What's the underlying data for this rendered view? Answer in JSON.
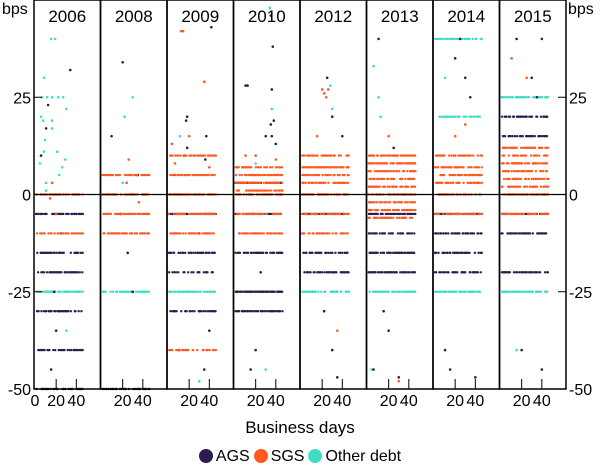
{
  "chart_data": {
    "type": "scatter",
    "ylabel_left": "bps",
    "ylabel_right": "bps",
    "xlabel": "Business days",
    "ylim": [
      -50,
      50
    ],
    "xlim": [
      0,
      62
    ],
    "yticks": [
      "25",
      "0",
      "-25",
      "-50"
    ],
    "ytick_values": [
      25,
      0,
      -25,
      -50
    ],
    "xticks_first": [
      "0",
      "20",
      "40"
    ],
    "xticks": [
      "20",
      "40"
    ],
    "xtick_values": [
      20,
      40
    ],
    "legend": [
      {
        "name": "AGS",
        "color": "#2b1d4f"
      },
      {
        "name": "SGS",
        "color": "#ff5a1e"
      },
      {
        "name": "Other debt",
        "color": "#40dcc4"
      }
    ],
    "legend_position": "bottom",
    "panels": [
      {
        "title": "2006",
        "AGS": {
          "levels": [
            -5,
            -15,
            -20,
            -30,
            -40,
            -50
          ],
          "points": [
            [
              12,
              23
            ],
            [
              10,
              17
            ],
            [
              34,
              32
            ],
            [
              5,
              10
            ],
            [
              20,
              -35
            ],
            [
              15,
              -45
            ],
            [
              25,
              -10
            ],
            [
              18,
              -25
            ]
          ]
        },
        "SGS": {
          "levels": [
            0,
            -10
          ],
          "points": [
            [
              16,
              3
            ],
            [
              14,
              -1
            ],
            [
              20,
              -5
            ],
            [
              25,
              -10
            ]
          ]
        },
        "Other debt": {
          "levels": [
            -25
          ],
          "points": [
            [
              15,
              40
            ],
            [
              19,
              40
            ],
            [
              8,
              30
            ],
            [
              6,
              25
            ],
            [
              11,
              25
            ],
            [
              16,
              25
            ],
            [
              22,
              25
            ],
            [
              27,
              25
            ],
            [
              30,
              22
            ],
            [
              5,
              20
            ],
            [
              7,
              19
            ],
            [
              16,
              19
            ],
            [
              16,
              17
            ],
            [
              9,
              14
            ],
            [
              8,
              11
            ],
            [
              21,
              11
            ],
            [
              4,
              8
            ],
            [
              29,
              9
            ],
            [
              23,
              5
            ],
            [
              26,
              7
            ],
            [
              10,
              3
            ],
            [
              10,
              1
            ],
            [
              30,
              -35
            ]
          ]
        }
      },
      {
        "title": "2008",
        "AGS": {
          "levels": [
            -50
          ],
          "points": [
            [
              20,
              34
            ],
            [
              9,
              15
            ],
            [
              35,
              5
            ],
            [
              18,
              -5
            ],
            [
              25,
              -15
            ],
            [
              30,
              -25
            ]
          ]
        },
        "SGS": {
          "levels": [
            0,
            5,
            -5,
            -10
          ],
          "points": [
            [
              26,
              9
            ],
            [
              24,
              3
            ],
            [
              36,
              -2
            ]
          ]
        },
        "Other debt": {
          "levels": [
            -25
          ],
          "points": [
            [
              30,
              25
            ],
            [
              22,
              20
            ],
            [
              20,
              3
            ],
            [
              28,
              0
            ]
          ]
        }
      },
      {
        "title": "2009",
        "AGS": {
          "levels": [
            -5,
            -15,
            -20,
            -30
          ],
          "points": [
            [
              42,
              43
            ],
            [
              18,
              20
            ],
            [
              17,
              19
            ],
            [
              37,
              15
            ],
            [
              18,
              12
            ],
            [
              36,
              9
            ],
            [
              15,
              10
            ],
            [
              30,
              -10
            ],
            [
              40,
              -35
            ],
            [
              35,
              -45
            ],
            [
              10,
              -40
            ]
          ]
        },
        "SGS": {
          "levels": [
            10,
            5,
            0,
            -5,
            -10,
            -40
          ],
          "points": [
            [
              12,
              42
            ],
            [
              14,
              42
            ],
            [
              35,
              29
            ],
            [
              3,
              13
            ],
            [
              20,
              15
            ],
            [
              6,
              8
            ],
            [
              40,
              7
            ]
          ]
        },
        "Other debt": {
          "levels": [
            -25
          ],
          "points": [
            [
              11,
              15
            ],
            [
              30,
              -48
            ]
          ]
        }
      },
      {
        "title": "2010",
        "AGS": {
          "levels": [
            3,
            -5,
            -15,
            -25,
            -30
          ],
          "points": [
            [
              35,
              46
            ],
            [
              10,
              28
            ],
            [
              12,
              28
            ],
            [
              37,
              38
            ],
            [
              36,
              27
            ],
            [
              38,
              19
            ],
            [
              35,
              18
            ],
            [
              36,
              15
            ],
            [
              40,
              13
            ],
            [
              30,
              15
            ],
            [
              20,
              -40
            ],
            [
              15,
              -45
            ],
            [
              25,
              -20
            ]
          ]
        },
        "SGS": {
          "levels": [
            7,
            5,
            3,
            1,
            0,
            -5,
            -10
          ],
          "points": [
            [
              10,
              10
            ],
            [
              20,
              10
            ],
            [
              40,
              9
            ]
          ]
        },
        "Other debt": {
          "levels": [
            -25
          ],
          "points": [
            [
              34,
              48
            ],
            [
              36,
              22
            ],
            [
              20,
              8
            ],
            [
              30,
              -45
            ]
          ]
        }
      },
      {
        "title": "2012",
        "AGS": {
          "levels": [
            -5,
            -15,
            -20
          ],
          "points": [
            [
              25,
              30
            ],
            [
              30,
              20
            ],
            [
              40,
              15
            ],
            [
              22,
              -30
            ],
            [
              30,
              -40
            ],
            [
              35,
              -47
            ]
          ]
        },
        "SGS": {
          "levels": [
            10,
            7,
            5,
            3,
            0,
            -5,
            -10
          ],
          "points": [
            [
              20,
              27
            ],
            [
              22,
              26
            ],
            [
              24,
              25
            ],
            [
              26,
              27
            ],
            [
              15,
              15
            ],
            [
              35,
              -35
            ]
          ]
        },
        "Other debt": {
          "levels": [
            -25
          ],
          "points": [
            [
              28,
              28
            ],
            [
              30,
              22
            ],
            [
              20,
              -50
            ]
          ]
        }
      },
      {
        "title": "2013",
        "AGS": {
          "levels": [
            -5,
            -10,
            -15,
            -20
          ],
          "points": [
            [
              10,
              40
            ],
            [
              15,
              -30
            ],
            [
              20,
              -35
            ],
            [
              5,
              -45
            ],
            [
              30,
              -47
            ],
            [
              25,
              12
            ]
          ]
        },
        "SGS": {
          "levels": [
            10,
            8,
            6,
            4,
            2,
            0,
            -2,
            -4,
            -6
          ],
          "points": [
            [
              30,
              -48
            ],
            [
              20,
              15
            ]
          ]
        },
        "Other debt": {
          "levels": [
            -25
          ],
          "points": [
            [
              5,
              33
            ],
            [
              10,
              25
            ],
            [
              12,
              20
            ],
            [
              3,
              -45
            ]
          ]
        }
      },
      {
        "title": "2014",
        "AGS": {
          "levels": [
            -5,
            -10,
            -15,
            -20
          ],
          "points": [
            [
              20,
              35
            ],
            [
              25,
              40
            ],
            [
              30,
              30
            ],
            [
              35,
              25
            ],
            [
              10,
              -40
            ],
            [
              15,
              -45
            ],
            [
              40,
              -47
            ]
          ]
        },
        "SGS": {
          "levels": [
            10,
            7,
            5,
            3,
            0,
            -5
          ],
          "points": [
            [
              20,
              15
            ],
            [
              30,
              18
            ]
          ]
        },
        "Other debt": {
          "levels": [
            40,
            20,
            -25
          ],
          "points": [
            [
              10,
              30
            ],
            [
              35,
              25
            ],
            [
              45,
              5
            ],
            [
              5,
              -10
            ]
          ]
        }
      },
      {
        "title": "2015",
        "AGS": {
          "levels": [
            20,
            15,
            -5,
            -10,
            -20
          ],
          "points": [
            [
              15,
              40
            ],
            [
              40,
              40
            ],
            [
              30,
              30
            ],
            [
              35,
              25
            ],
            [
              20,
              -40
            ],
            [
              40,
              -45
            ]
          ]
        },
        "SGS": {
          "levels": [
            12,
            10,
            8,
            6,
            4,
            2,
            0,
            -5
          ],
          "points": [
            [
              10,
              35
            ],
            [
              25,
              30
            ]
          ]
        },
        "Other debt": {
          "levels": [
            -25,
            25
          ],
          "points": [
            [
              15,
              -40
            ],
            [
              45,
              20
            ]
          ]
        }
      }
    ]
  }
}
